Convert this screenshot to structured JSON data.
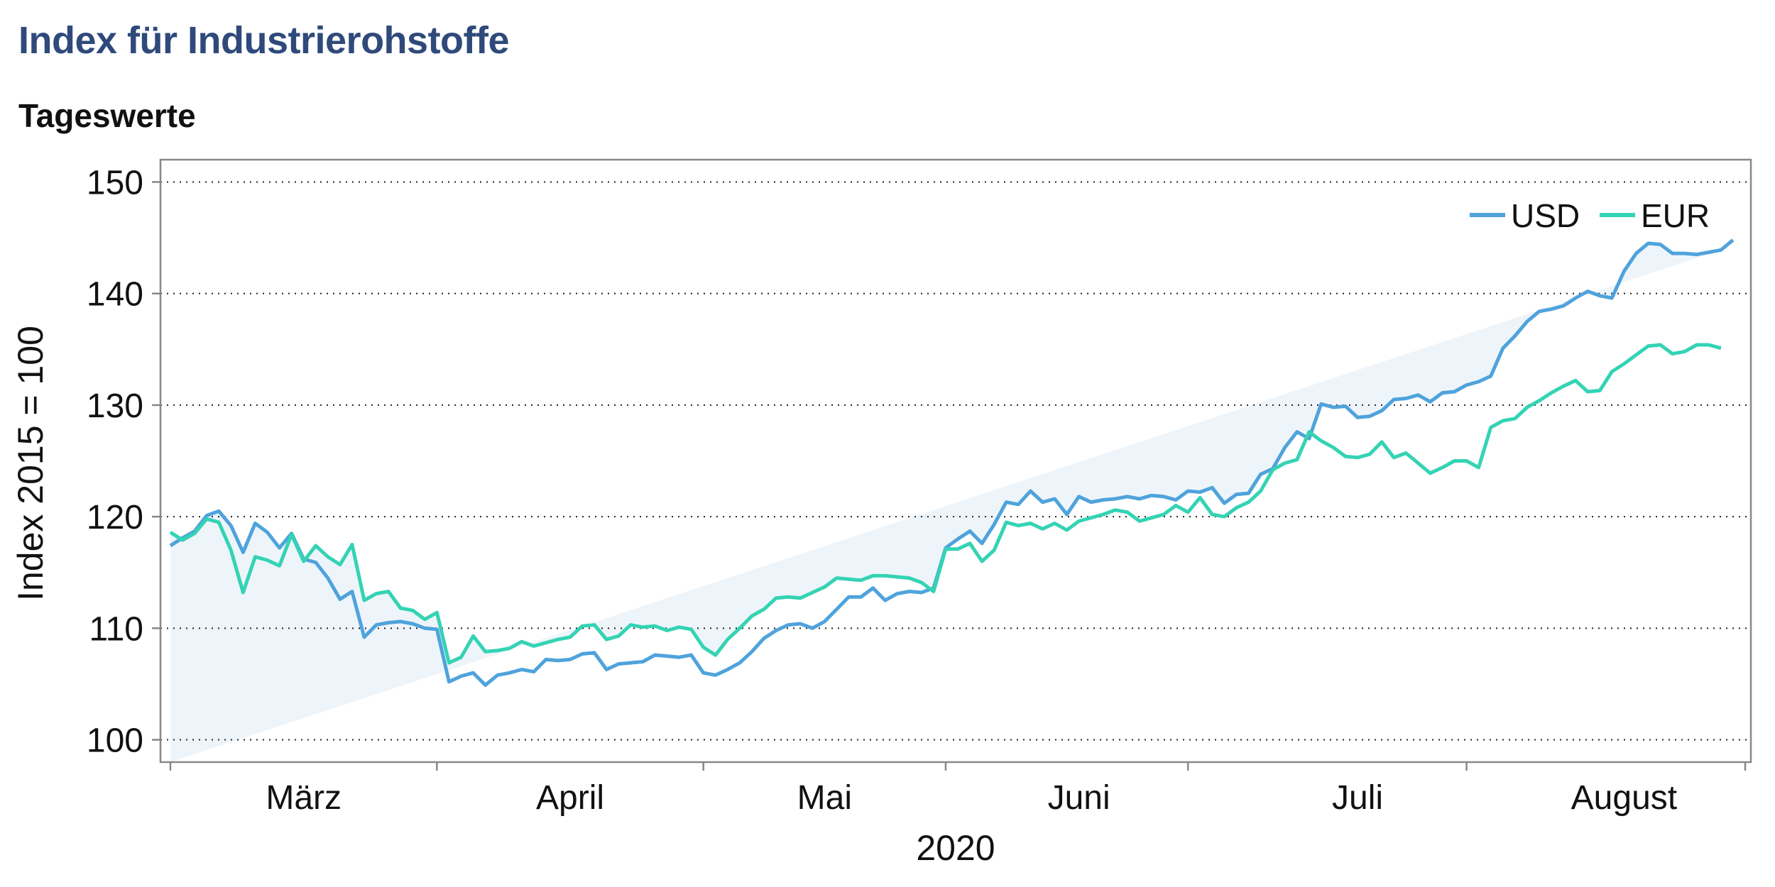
{
  "header": {
    "title": "Index für Industrierohstoffe",
    "subtitle": "Tageswerte"
  },
  "chart_data": {
    "type": "line",
    "ylabel": "Index 2015 = 100",
    "xlabel": "2020",
    "ylim": [
      98,
      152
    ],
    "yticks": [
      100,
      110,
      120,
      130,
      140,
      150
    ],
    "x_range": [
      0,
      130
    ],
    "month_labels": [
      {
        "label": "März",
        "x": 11
      },
      {
        "label": "April",
        "x": 33
      },
      {
        "label": "Mai",
        "x": 54
      },
      {
        "label": "Juni",
        "x": 75
      },
      {
        "label": "Juli",
        "x": 98
      },
      {
        "label": "August",
        "x": 120
      }
    ],
    "month_ticks": [
      0,
      22,
      44,
      64,
      84,
      107,
      130
    ],
    "grid": "horizontal dotted",
    "legend_position": "top-right",
    "colors": {
      "USD": "#4fa3dc",
      "EUR": "#34d3b4",
      "fill": "#eef5fa",
      "axis": "#888888"
    },
    "series": [
      {
        "name": "USD",
        "values": [
          117.4,
          118.1,
          118.7,
          120.1,
          120.5,
          119.2,
          116.8,
          119.4,
          118.6,
          117.2,
          118.5,
          116.2,
          115.9,
          114.5,
          112.6,
          113.3,
          109.2,
          110.3,
          110.5,
          110.6,
          110.4,
          110.0,
          109.9,
          105.2,
          105.7,
          106.0,
          104.9,
          105.8,
          106.0,
          106.3,
          106.1,
          107.2,
          107.1,
          107.2,
          107.7,
          107.8,
          106.3,
          106.8,
          106.9,
          107.0,
          107.6,
          107.5,
          107.4,
          107.6,
          106.0,
          105.8,
          106.3,
          106.9,
          107.9,
          109.1,
          109.8,
          110.3,
          110.4,
          110.0,
          110.6,
          111.7,
          112.8,
          112.8,
          113.6,
          112.5,
          113.1,
          113.3,
          113.2,
          113.6,
          117.2,
          118.0,
          118.7,
          117.6,
          119.3,
          121.3,
          121.1,
          122.3,
          121.3,
          121.6,
          120.2,
          121.8,
          121.3,
          121.5,
          121.6,
          121.8,
          121.6,
          121.9,
          121.8,
          121.5,
          122.3,
          122.2,
          122.6,
          121.2,
          122.0,
          122.1,
          123.8,
          124.3,
          126.2,
          127.6,
          127.0,
          130.1,
          129.8,
          129.9,
          128.9,
          129.0,
          129.5,
          130.5,
          130.6,
          130.9,
          130.3,
          131.1,
          131.2,
          131.8,
          132.1,
          132.6,
          135.1,
          136.2,
          137.5,
          138.4,
          138.6,
          138.9,
          139.6,
          140.2,
          139.8,
          139.6,
          142.0,
          143.6,
          144.5,
          144.4,
          143.6,
          143.6,
          143.5,
          143.7,
          143.9,
          144.8
        ]
      },
      {
        "name": "EUR",
        "values": [
          118.6,
          117.9,
          118.5,
          119.8,
          119.5,
          117.0,
          113.2,
          116.4,
          116.1,
          115.6,
          118.4,
          116.0,
          117.4,
          116.4,
          115.7,
          117.5,
          112.5,
          113.1,
          113.3,
          111.8,
          111.6,
          110.8,
          111.4,
          106.9,
          107.4,
          109.3,
          107.9,
          108.0,
          108.2,
          108.8,
          108.4,
          108.7,
          109.0,
          109.2,
          110.2,
          110.3,
          109.0,
          109.3,
          110.3,
          110.1,
          110.2,
          109.8,
          110.1,
          109.9,
          108.3,
          107.6,
          109.0,
          110.0,
          111.1,
          111.7,
          112.7,
          112.8,
          112.7,
          113.2,
          113.7,
          114.5,
          114.4,
          114.3,
          114.7,
          114.7,
          114.6,
          114.5,
          114.1,
          113.3,
          117.1,
          117.1,
          117.6,
          116.0,
          117.0,
          119.5,
          119.2,
          119.4,
          118.9,
          119.4,
          118.8,
          119.6,
          119.9,
          120.2,
          120.6,
          120.4,
          119.6,
          119.9,
          120.2,
          121.0,
          120.4,
          121.7,
          120.2,
          120.0,
          120.8,
          121.3,
          122.3,
          124.2,
          124.8,
          125.1,
          127.6,
          126.8,
          126.2,
          125.4,
          125.3,
          125.6,
          126.7,
          125.3,
          125.7,
          124.8,
          123.9,
          124.4,
          125.0,
          125.0,
          124.4,
          128.0,
          128.6,
          128.8,
          129.8,
          130.4,
          131.1,
          131.7,
          132.2,
          131.2,
          131.3,
          133.0,
          133.7,
          134.5,
          135.3,
          135.4,
          134.6,
          134.8,
          135.4,
          135.4,
          135.1
        ]
      }
    ]
  }
}
